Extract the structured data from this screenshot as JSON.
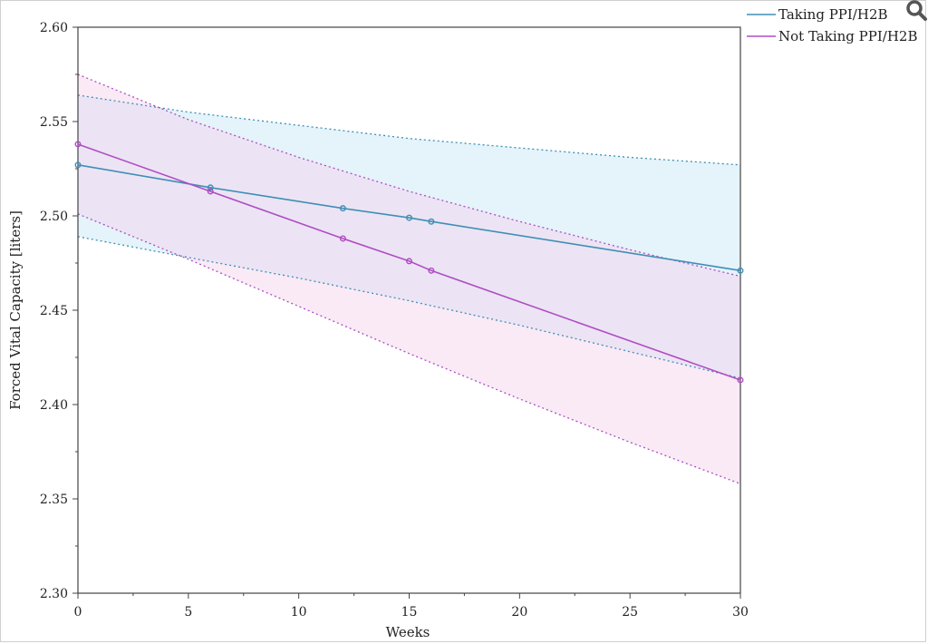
{
  "chart_data": {
    "type": "line",
    "title": "",
    "xlabel": "Weeks",
    "ylabel": "Forced Vital Capacity [liters]",
    "xlim": [
      0,
      30
    ],
    "ylim": [
      2.3,
      2.6
    ],
    "x_ticks": [
      "0",
      "5",
      "10",
      "15",
      "20",
      "25",
      "30"
    ],
    "y_ticks": [
      "2.30",
      "2.35",
      "2.40",
      "2.45",
      "2.50",
      "2.55",
      "2.60"
    ],
    "legend_position": "top-right",
    "grid": false,
    "series": [
      {
        "name": "Taking PPI/H2B",
        "color": "#3f8fb5",
        "band_color": "#cfe9f5",
        "points": [
          [
            0,
            2.527
          ],
          [
            6,
            2.515
          ],
          [
            12,
            2.504
          ],
          [
            15,
            2.499
          ],
          [
            16,
            2.497
          ],
          [
            30,
            2.471
          ]
        ],
        "ci_upper": [
          [
            0,
            2.564
          ],
          [
            5,
            2.555
          ],
          [
            10,
            2.548
          ],
          [
            15,
            2.541
          ],
          [
            20,
            2.536
          ],
          [
            25,
            2.531
          ],
          [
            30,
            2.527
          ]
        ],
        "ci_lower": [
          [
            0,
            2.489
          ],
          [
            5,
            2.478
          ],
          [
            10,
            2.467
          ],
          [
            15,
            2.455
          ],
          [
            20,
            2.442
          ],
          [
            25,
            2.428
          ],
          [
            30,
            2.414
          ]
        ]
      },
      {
        "name": "Not Taking PPI/H2B",
        "color": "#b04dc4",
        "band_color": "#f4d6ee",
        "points": [
          [
            0,
            2.538
          ],
          [
            6,
            2.513
          ],
          [
            12,
            2.488
          ],
          [
            15,
            2.476
          ],
          [
            16,
            2.471
          ],
          [
            30,
            2.413
          ]
        ],
        "ci_upper": [
          [
            0,
            2.575
          ],
          [
            5,
            2.551
          ],
          [
            10,
            2.531
          ],
          [
            15,
            2.513
          ],
          [
            20,
            2.497
          ],
          [
            25,
            2.482
          ],
          [
            30,
            2.468
          ]
        ],
        "ci_lower": [
          [
            0,
            2.501
          ],
          [
            5,
            2.477
          ],
          [
            10,
            2.452
          ],
          [
            15,
            2.427
          ],
          [
            20,
            2.403
          ],
          [
            25,
            2.38
          ],
          [
            30,
            2.358
          ]
        ]
      }
    ]
  },
  "toolbar": {
    "zoom_icon": "magnifier-icon"
  }
}
